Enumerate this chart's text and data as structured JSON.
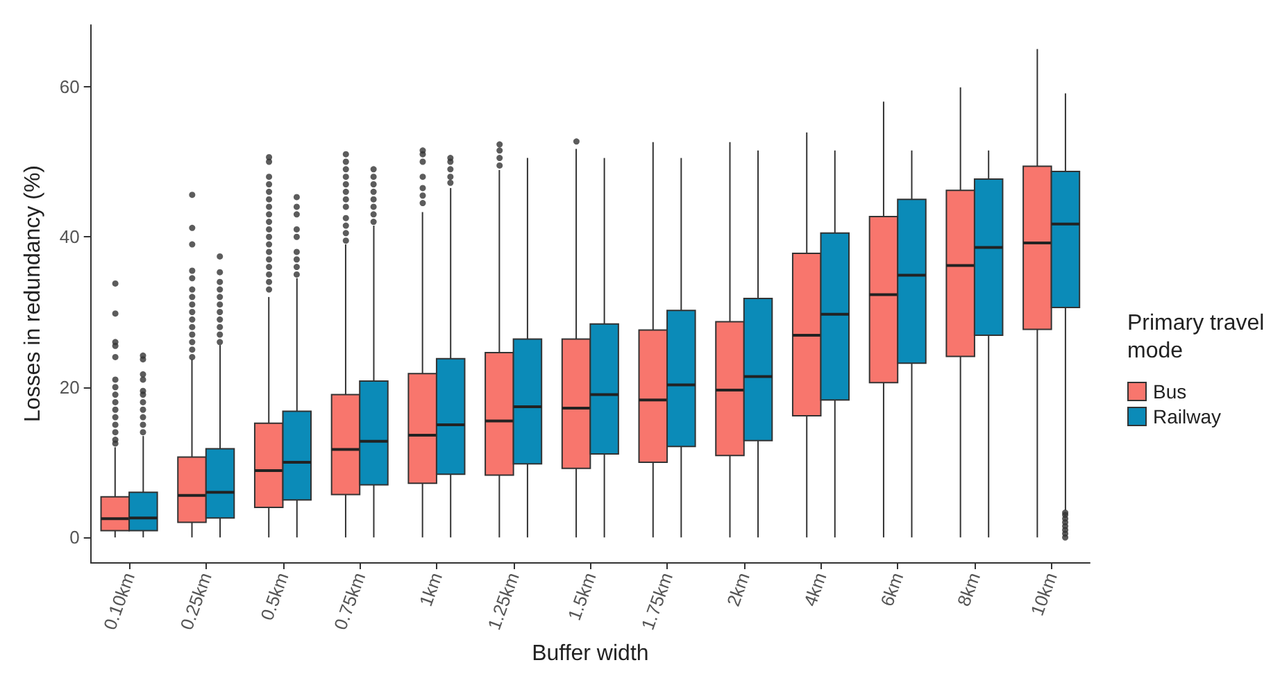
{
  "chart_data": {
    "type": "box",
    "xlabel": "Buffer width",
    "ylabel": "Losses in redundancy (%)",
    "legend_title": "Primary travel\nmode",
    "legend": "right",
    "grid": false,
    "ylim": [
      -3.3,
      68.2
    ],
    "yticks": [
      0,
      20,
      40,
      60
    ],
    "categories": [
      "0.10km",
      "0.25km",
      "0.5km",
      "0.75km",
      "1km",
      "1.25km",
      "1.5km",
      "1.75km",
      "2km",
      "4km",
      "6km",
      "8km",
      "10km"
    ],
    "series": [
      {
        "name": "Bus",
        "color": "#f8766d",
        "boxes": [
          {
            "low": 0,
            "q1": 0.9,
            "median": 2.5,
            "q3": 5.4,
            "high": 12,
            "outliers": [
              12.5,
              13,
              14,
              15,
              16,
              17,
              18,
              19,
              20,
              21,
              24,
              25.5,
              26,
              29.8,
              33.8
            ]
          },
          {
            "low": 0,
            "q1": 2,
            "median": 5.6,
            "q3": 10.7,
            "high": 23.7,
            "outliers": [
              24,
              25,
              26,
              27,
              28,
              29,
              30,
              31,
              32,
              33,
              34.5,
              35.5,
              39,
              41.2,
              45.6
            ]
          },
          {
            "low": 0,
            "q1": 4,
            "median": 8.9,
            "q3": 15.2,
            "high": 32,
            "outliers": [
              33,
              34,
              35,
              36,
              37,
              38,
              39,
              40,
              41,
              42,
              43,
              44,
              45,
              46,
              47,
              48,
              50,
              50.6
            ]
          },
          {
            "low": 0,
            "q1": 5.7,
            "median": 11.7,
            "q3": 19,
            "high": 39,
            "outliers": [
              39.5,
              40.5,
              41.5,
              42.5,
              44,
              45,
              46,
              47,
              48,
              49,
              50,
              51
            ]
          },
          {
            "low": 0,
            "q1": 7.2,
            "median": 13.6,
            "q3": 21.8,
            "high": 43.3,
            "outliers": [
              44.5,
              45.5,
              46.5,
              48,
              50,
              51,
              51.5
            ]
          },
          {
            "low": 0,
            "q1": 8.3,
            "median": 15.5,
            "q3": 24.6,
            "high": 48.9,
            "outliers": [
              49.5,
              50.5,
              51.5,
              52.3
            ]
          },
          {
            "low": 0,
            "q1": 9.2,
            "median": 17.2,
            "q3": 26.4,
            "high": 51.7,
            "outliers": [
              52.7
            ]
          },
          {
            "low": 0,
            "q1": 10,
            "median": 18.3,
            "q3": 27.6,
            "high": 52.6
          },
          {
            "low": 0,
            "q1": 10.9,
            "median": 19.6,
            "q3": 28.7,
            "high": 52.6
          },
          {
            "low": 0,
            "q1": 16.2,
            "median": 26.9,
            "q3": 37.8,
            "high": 53.9
          },
          {
            "low": 0,
            "q1": 20.6,
            "median": 32.3,
            "q3": 42.7,
            "high": 58
          },
          {
            "low": 0,
            "q1": 24.1,
            "median": 36.2,
            "q3": 46.2,
            "high": 59.9
          },
          {
            "low": 0,
            "q1": 27.7,
            "median": 39.2,
            "q3": 49.4,
            "high": 65
          }
        ]
      },
      {
        "name": "Railway",
        "color": "#0b8bb8",
        "boxes": [
          {
            "low": 0,
            "q1": 0.9,
            "median": 2.6,
            "q3": 6,
            "high": 13.5,
            "outliers": [
              14,
              15,
              16,
              17,
              18,
              19,
              19.5,
              21,
              21.7,
              23.7,
              24.2
            ]
          },
          {
            "low": 0,
            "q1": 2.6,
            "median": 6,
            "q3": 11.8,
            "high": 25.6,
            "outliers": [
              26,
              27,
              28,
              29,
              30,
              31,
              32,
              33,
              34,
              35.3,
              37.4
            ]
          },
          {
            "low": 0,
            "q1": 5,
            "median": 10,
            "q3": 16.8,
            "high": 34.5,
            "outliers": [
              35,
              36,
              37,
              38,
              40,
              41,
              43,
              44,
              45.3
            ]
          },
          {
            "low": 0,
            "q1": 7,
            "median": 12.8,
            "q3": 20.8,
            "high": 41.5,
            "outliers": [
              42,
              43,
              44,
              45,
              46,
              47,
              48,
              49
            ]
          },
          {
            "low": 0,
            "q1": 8.4,
            "median": 15,
            "q3": 23.8,
            "high": 46.5,
            "outliers": [
              47.2,
              48,
              49,
              50,
              50.5
            ]
          },
          {
            "low": 0,
            "q1": 9.8,
            "median": 17.4,
            "q3": 26.4,
            "high": 50.5
          },
          {
            "low": 0,
            "q1": 11.1,
            "median": 19,
            "q3": 28.4,
            "high": 50.5
          },
          {
            "low": 0,
            "q1": 12.1,
            "median": 20.3,
            "q3": 30.2,
            "high": 50.5
          },
          {
            "low": 0,
            "q1": 12.9,
            "median": 21.4,
            "q3": 31.8,
            "high": 51.5
          },
          {
            "low": 0,
            "q1": 18.3,
            "median": 29.7,
            "q3": 40.5,
            "high": 51.5
          },
          {
            "low": 0,
            "q1": 23.2,
            "median": 34.9,
            "q3": 45,
            "high": 51.5
          },
          {
            "low": 0,
            "q1": 26.9,
            "median": 38.6,
            "q3": 47.7,
            "high": 51.5
          },
          {
            "low": 3.6,
            "q1": 30.6,
            "median": 41.7,
            "q3": 48.7,
            "high": 59.1,
            "outliers": [
              0,
              0.5,
              1,
              1.5,
              2,
              2.5,
              3,
              3.3
            ]
          }
        ]
      }
    ]
  }
}
